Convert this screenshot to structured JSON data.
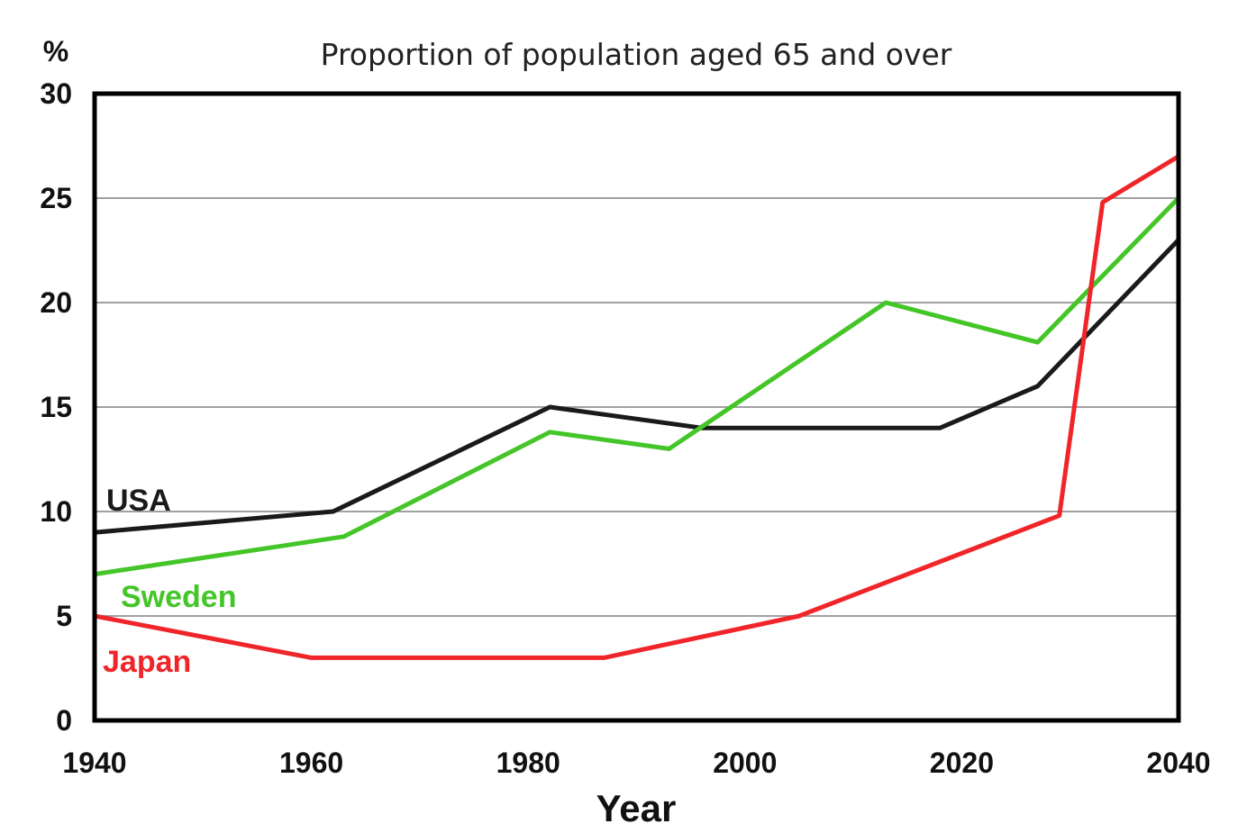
{
  "chart_data": {
    "type": "line",
    "title": "Proportion of population aged 65 and over",
    "xlabel": "Year",
    "ylabel": "%",
    "xlim": [
      1940,
      2040
    ],
    "ylim": [
      0,
      30
    ],
    "x_ticks": [
      1940,
      1960,
      1980,
      2000,
      2020,
      2040
    ],
    "y_ticks": [
      0,
      5,
      10,
      15,
      20,
      25,
      30
    ],
    "grid": true,
    "series": [
      {
        "name": "USA",
        "color": "#1a1a1a",
        "x": [
          1940,
          1962,
          1982,
          1996,
          2018,
          2027,
          2040
        ],
        "y": [
          9,
          10,
          15,
          14,
          14,
          16,
          23
        ]
      },
      {
        "name": "Sweden",
        "color": "#44c528",
        "x": [
          1940,
          1963,
          1982,
          1993,
          2013,
          2027,
          2040
        ],
        "y": [
          7,
          8.8,
          13.8,
          13,
          20,
          18.1,
          25
        ]
      },
      {
        "name": "Japan",
        "color": "#f0252a",
        "x": [
          1940,
          1960,
          1987,
          2005,
          2029,
          2033,
          2040
        ],
        "y": [
          5,
          3,
          3,
          5,
          9.8,
          24.8,
          27
        ]
      }
    ]
  }
}
